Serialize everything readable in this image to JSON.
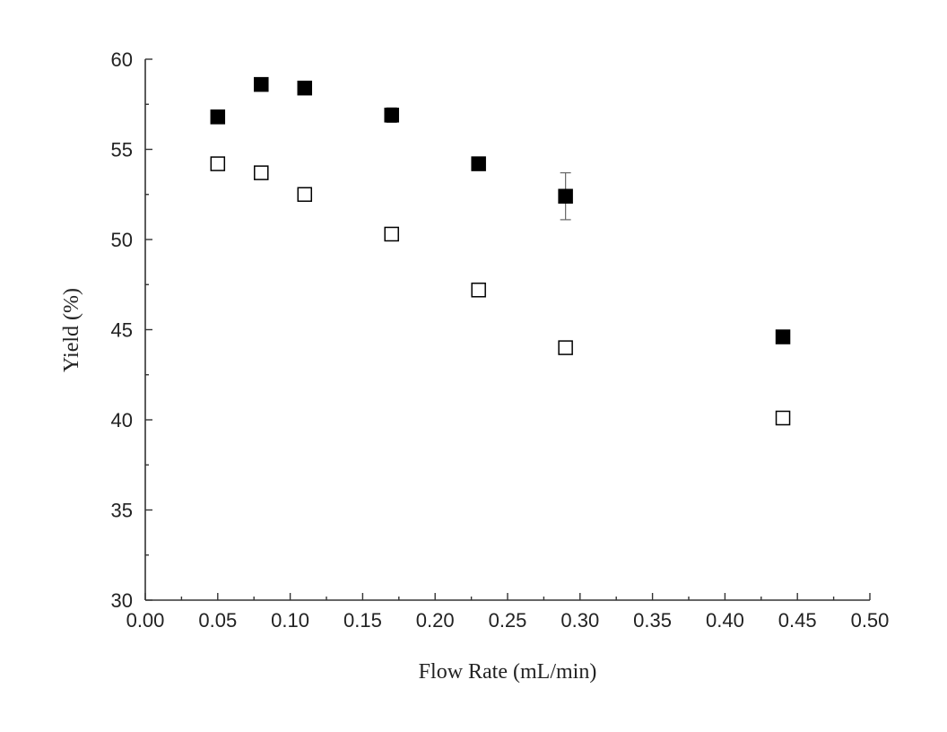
{
  "chart_data": {
    "type": "scatter",
    "title": "",
    "xlabel": "Flow Rate (mL/min)",
    "ylabel": "Yield (%)",
    "xlim": [
      0,
      0.5
    ],
    "ylim": [
      30,
      60
    ],
    "xticks": [
      "0.00",
      "0.05",
      "0.10",
      "0.15",
      "0.20",
      "0.25",
      "0.30",
      "0.35",
      "0.40",
      "0.45",
      "0.50"
    ],
    "yticks": [
      "30",
      "35",
      "40",
      "45",
      "50",
      "55",
      "60"
    ],
    "grid": false,
    "legend": "none",
    "series": [
      {
        "marker": "filled-square",
        "color": "#000000",
        "points": [
          {
            "x": 0.05,
            "y": 56.8,
            "err": 0.3
          },
          {
            "x": 0.08,
            "y": 58.6,
            "err": 0.2
          },
          {
            "x": 0.11,
            "y": 58.4,
            "err": 0.2
          },
          {
            "x": 0.17,
            "y": 56.9,
            "err": 0.4
          },
          {
            "x": 0.23,
            "y": 54.2,
            "err": 0.2
          },
          {
            "x": 0.29,
            "y": 52.4,
            "err": 1.3
          },
          {
            "x": 0.44,
            "y": 44.6,
            "err": 0.2
          }
        ]
      },
      {
        "marker": "open-square",
        "color": "#000000",
        "points": [
          {
            "x": 0.05,
            "y": 54.2,
            "err": 0
          },
          {
            "x": 0.08,
            "y": 53.7,
            "err": 0
          },
          {
            "x": 0.11,
            "y": 52.5,
            "err": 0
          },
          {
            "x": 0.17,
            "y": 50.3,
            "err": 0
          },
          {
            "x": 0.23,
            "y": 47.2,
            "err": 0
          },
          {
            "x": 0.29,
            "y": 44.0,
            "err": 0
          },
          {
            "x": 0.44,
            "y": 40.1,
            "err": 0
          }
        ]
      }
    ]
  }
}
